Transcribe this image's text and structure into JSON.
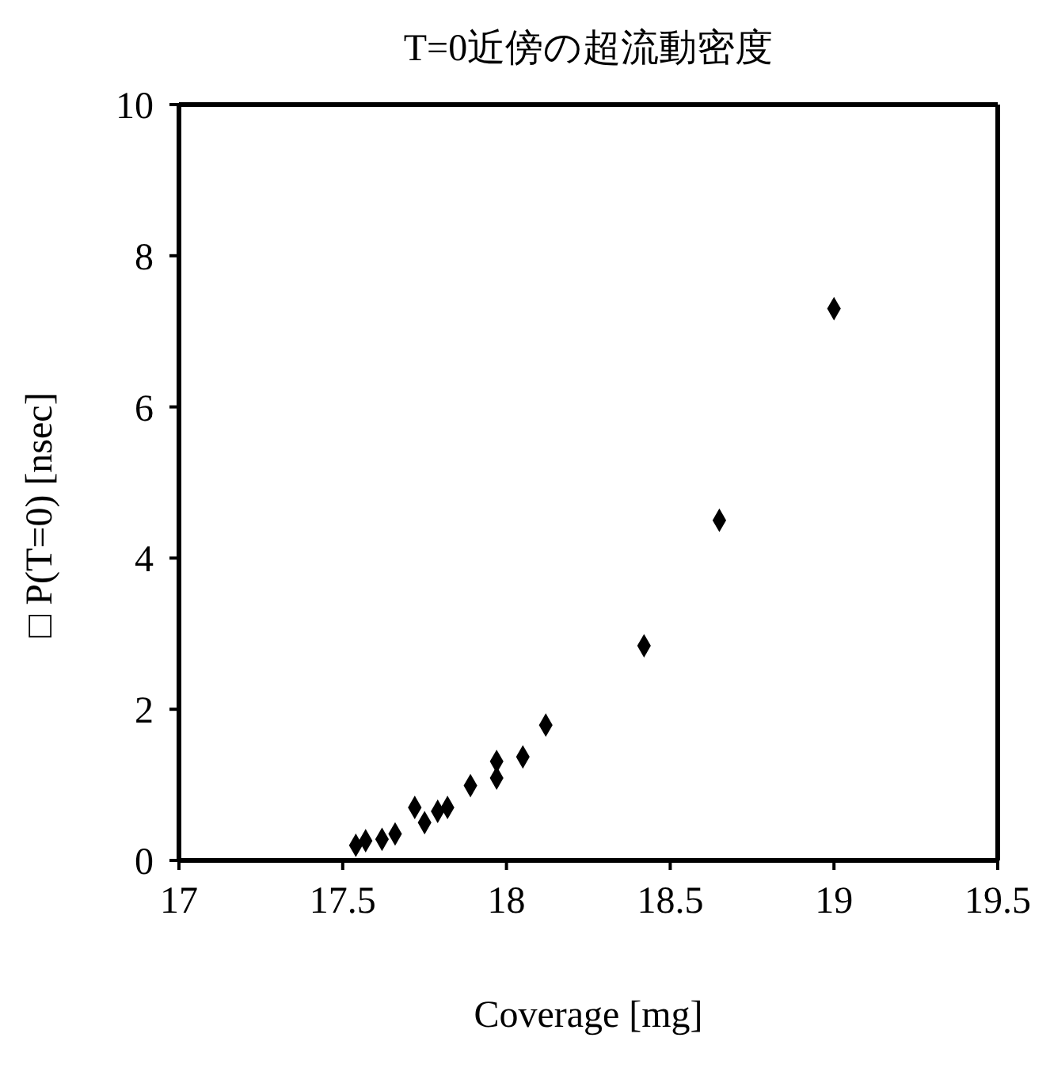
{
  "chart_data": {
    "type": "scatter",
    "title": "T=0近傍の超流動密度",
    "xlabel": "Coverage [mg]",
    "ylabel": "□ P(T=0) [nsec]",
    "x": [
      17.54,
      17.57,
      17.62,
      17.66,
      17.72,
      17.75,
      17.79,
      17.82,
      17.89,
      17.97,
      17.97,
      18.05,
      18.12,
      18.42,
      18.65,
      19.0
    ],
    "series": [
      {
        "color": "#000000",
        "values": [
          0.2,
          0.26,
          0.28,
          0.35,
          0.7,
          0.5,
          0.65,
          0.7,
          0.99,
          1.09,
          1.31,
          1.37,
          1.79,
          2.84,
          4.5,
          7.3
        ]
      }
    ],
    "xlim": [
      17,
      19.5
    ],
    "xticks": [
      17,
      17.5,
      18,
      18.5,
      19,
      19.5
    ],
    "ylim": [
      0,
      10
    ],
    "yticks": [
      0,
      2,
      4,
      6,
      8,
      10
    ],
    "marker": "diamond",
    "grid": false
  }
}
